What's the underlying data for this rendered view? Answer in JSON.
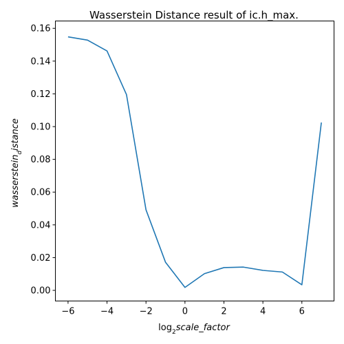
{
  "chart_data": {
    "type": "line",
    "title": "Wasserstein Distance result of ic.h_max.",
    "xlabel": {
      "parts": [
        {
          "text": "log",
          "style": "normal"
        },
        {
          "text": "2",
          "style": "sub"
        },
        {
          "text": "scale_factor",
          "style": "italic"
        }
      ]
    },
    "ylabel": {
      "parts": [
        {
          "text": "wasserstein",
          "style": "italic"
        },
        {
          "text": "d",
          "style": "sub-italic"
        },
        {
          "text": "istance",
          "style": "italic"
        }
      ]
    },
    "xlim": [
      -6.65,
      7.65
    ],
    "ylim": [
      -0.0065,
      0.1645
    ],
    "xticks": [
      -6,
      -4,
      -2,
      0,
      2,
      4,
      6
    ],
    "xtick_labels": [
      "−6",
      "−4",
      "−2",
      "0",
      "2",
      "4",
      "6"
    ],
    "yticks": [
      0.0,
      0.02,
      0.04,
      0.06,
      0.08,
      0.1,
      0.12,
      0.14,
      0.16
    ],
    "ytick_labels": [
      "0.00",
      "0.02",
      "0.04",
      "0.06",
      "0.08",
      "0.10",
      "0.12",
      "0.14",
      "0.16"
    ],
    "grid": false,
    "series": [
      {
        "color": "#1f77b4",
        "x": [
          -6,
          -5,
          -4,
          -3,
          -2,
          -1,
          0,
          1,
          2,
          3,
          4,
          5,
          6,
          7
        ],
        "y": [
          0.1548,
          0.1528,
          0.1462,
          0.1195,
          0.0492,
          0.0172,
          0.0018,
          0.0102,
          0.0139,
          0.0142,
          0.0122,
          0.0112,
          0.0034,
          0.1025
        ]
      }
    ]
  }
}
